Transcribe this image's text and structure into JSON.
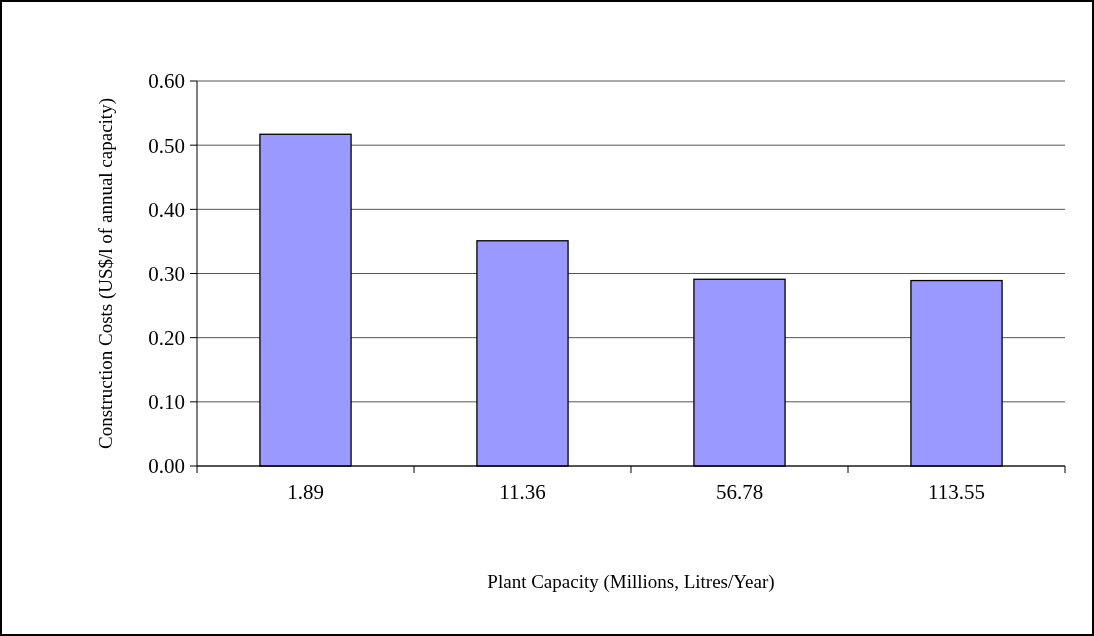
{
  "chart_data": {
    "type": "bar",
    "xlabel": "Plant Capacity (Millions, Litres/Year)",
    "ylabel": "Construction Costs (US$/l of annual capacity)",
    "categories": [
      "1.89",
      "11.36",
      "56.78",
      "113.55"
    ],
    "series": [
      {
        "color": "#9999ff",
        "values": [
          0.517,
          0.351,
          0.291,
          0.289
        ]
      }
    ],
    "ylim": [
      0,
      0.6
    ],
    "yticks": [
      {
        "value": 0,
        "label": "0.00"
      },
      {
        "value": 0.1,
        "label": "0.10"
      },
      {
        "value": 0.2,
        "label": "0.20"
      },
      {
        "value": 0.3,
        "label": "0.30"
      },
      {
        "value": 0.4,
        "label": "0.40"
      },
      {
        "value": 0.5,
        "label": "0.50"
      },
      {
        "value": 0.6,
        "label": "0.60"
      }
    ],
    "grid": "y"
  }
}
